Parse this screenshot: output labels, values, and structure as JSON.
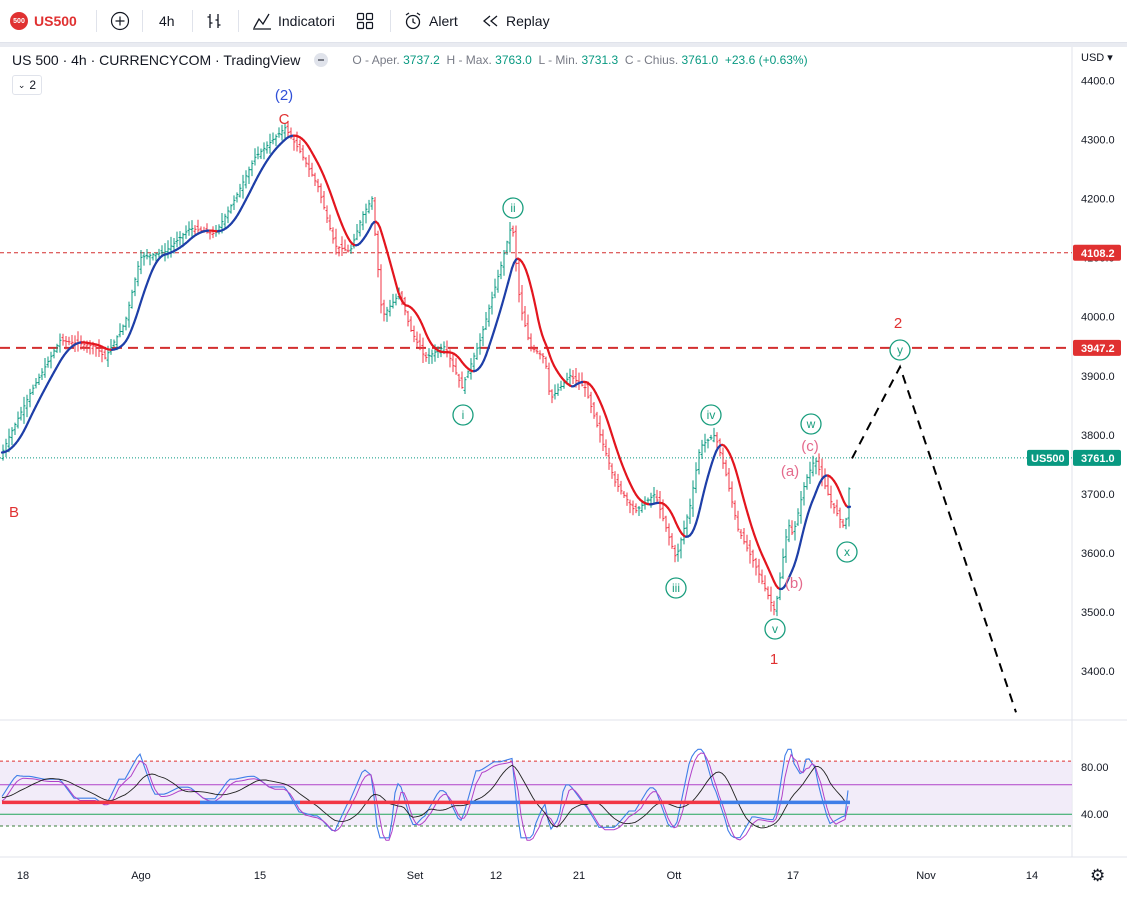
{
  "toolbar": {
    "logo_text": "500",
    "symbol": "US500",
    "interval": "4h",
    "indicators_label": "Indicatori",
    "alert_label": "Alert",
    "replay_label": "Replay"
  },
  "legend": {
    "title": "US 500 · 4h · CURRENCYCOM · TradingView",
    "open_label": "O - Aper.",
    "open": "3737.2",
    "high_label": "H - Max.",
    "high": "3763.0",
    "low_label": "L - Min.",
    "low": "3731.3",
    "close_label": "C - Chius.",
    "close": "3761.0",
    "change": "+23.6 (+0.63%)",
    "collapse_count": "2"
  },
  "price_axis": {
    "currency": "USD",
    "ticks": [
      "4400.0",
      "4300.0",
      "4200.0",
      "4100.0",
      "4000.0",
      "3900.0",
      "3800.0",
      "3700.0",
      "3600.0",
      "3500.0",
      "3400.0"
    ],
    "level_upper": "4108.2",
    "level_mid": "3947.2",
    "current_symbol": "US500",
    "current_price": "3761.0"
  },
  "oscillator_axis": {
    "ticks": [
      "80.00",
      "40.00"
    ]
  },
  "time_axis": {
    "labels": [
      "18",
      "Ago",
      "15",
      "Set",
      "12",
      "21",
      "Ott",
      "17",
      "Nov",
      "14"
    ]
  },
  "wave_labels": {
    "wave2_major": "(2)",
    "c": "C",
    "b": "B",
    "i": "i",
    "ii": "ii",
    "iii": "iii",
    "iv": "iv",
    "v": "v",
    "one": "1",
    "two": "2",
    "a": "(a)",
    "bb": "(b)",
    "cc": "(c)",
    "w": "w",
    "x": "x",
    "y": "y"
  },
  "colors": {
    "up": "#089981",
    "down": "#f23645",
    "ma_down": "#e3161f",
    "ma_up": "#1e3fa8",
    "wave_teal": "#1a9e7e",
    "wave_red": "#e03131",
    "wave_blue": "#2f4fd8",
    "wave_pink": "#e46a8c"
  },
  "chart_data": {
    "type": "line",
    "title": "US 500 · 4h · CURRENCYCOM · TradingView",
    "ylim": [
      3320,
      4470
    ],
    "x": [
      "18",
      "Ago",
      "15",
      "Set",
      "12",
      "21",
      "Ott",
      "17"
    ],
    "series": [
      {
        "values": [
          3760,
          4110,
          4320,
          4160,
          3930,
          3850,
          3700,
          3761
        ]
      }
    ],
    "horizontal_levels": [
      4108.2,
      3947.2,
      3761.0
    ],
    "oscillator": {
      "ylim": [
        20,
        100
      ],
      "ticks": [
        80,
        40
      ],
      "band": [
        85,
        30
      ],
      "last_value": 68
    }
  }
}
